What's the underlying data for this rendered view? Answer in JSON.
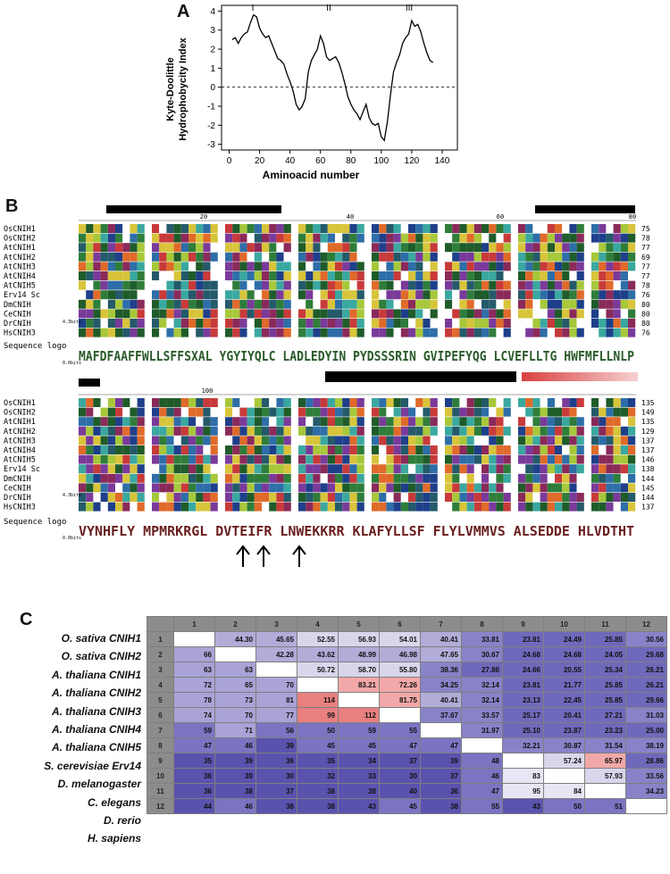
{
  "panel_a": {
    "letter": "A",
    "ylabel_line1": "Kyte-Doolittle",
    "ylabel_line2": "Hydrophobycity Index",
    "xlabel": "Aminoacid number",
    "region_labels": [
      "I",
      "II",
      "III"
    ],
    "chart_data": {
      "type": "line",
      "xlabel": "Aminoacid number",
      "ylabel": "Kyte-Doolittle Hydrophobycity Index",
      "xlim": [
        -5,
        150
      ],
      "ylim": [
        -3.3,
        4.3
      ],
      "xticks": [
        "0",
        "20",
        "40",
        "60",
        "80",
        "100",
        "120",
        "140"
      ],
      "yticks": [
        "-3",
        "-2",
        "-1",
        "0",
        "1",
        "2",
        "3",
        "4"
      ],
      "reference_line_y": 0,
      "x": [
        2,
        4,
        6,
        8,
        10,
        12,
        14,
        16,
        18,
        20,
        22,
        24,
        26,
        28,
        30,
        32,
        34,
        36,
        38,
        40,
        42,
        44,
        46,
        48,
        50,
        52,
        54,
        56,
        58,
        60,
        62,
        64,
        66,
        68,
        70,
        72,
        74,
        76,
        78,
        80,
        82,
        84,
        86,
        88,
        90,
        92,
        94,
        96,
        98,
        100,
        102,
        104,
        106,
        108,
        110,
        112,
        114,
        116,
        118,
        120,
        122,
        124,
        126,
        128,
        130,
        132,
        134
      ],
      "y": [
        2.5,
        2.6,
        2.3,
        2.6,
        2.8,
        2.9,
        3.4,
        3.8,
        3.7,
        3.1,
        2.8,
        2.6,
        2.7,
        2.3,
        1.9,
        1.5,
        1.4,
        1.2,
        0.7,
        0.3,
        -0.2,
        -0.9,
        -1.2,
        -1.0,
        -0.6,
        0.8,
        1.4,
        1.7,
        2.0,
        2.7,
        2.3,
        1.6,
        1.4,
        1.5,
        1.6,
        1.3,
        0.8,
        0.2,
        -0.5,
        -0.9,
        -1.2,
        -1.4,
        -1.7,
        -1.3,
        -0.9,
        -1.6,
        -1.9,
        -2.0,
        -1.9,
        -2.6,
        -2.8,
        -1.8,
        -0.4,
        0.8,
        1.3,
        1.7,
        2.3,
        2.6,
        2.8,
        3.5,
        3.2,
        3.3,
        2.9,
        2.3,
        1.8,
        1.4,
        1.3
      ]
    }
  },
  "panel_b": {
    "letter": "B",
    "block1": {
      "ruler_ticks": [
        "20",
        "40",
        "60",
        "80"
      ],
      "sequences": [
        {
          "name": "OsCNIH1",
          "end": "75"
        },
        {
          "name": "OsCNIH2",
          "end": "78"
        },
        {
          "name": "AtCNIH1",
          "end": "77"
        },
        {
          "name": "AtCNIH2",
          "end": "69"
        },
        {
          "name": "AtCNIH3",
          "end": "77"
        },
        {
          "name": "AtCNIH4",
          "end": "77"
        },
        {
          "name": "AtCNIH5",
          "end": "78"
        },
        {
          "name": "Erv14 Sc",
          "end": "76"
        },
        {
          "name": "DmCNIH",
          "end": "80"
        },
        {
          "name": "CeCNIH",
          "end": "80"
        },
        {
          "name": "DrCNIH",
          "end": "80"
        },
        {
          "name": "HsCNIH3",
          "end": "76"
        }
      ],
      "logo_label": "Sequence logo",
      "bits_top": "4.3bits",
      "bits_bottom": "0.0bits",
      "logo_text": "MAFDFAAFFWLLSFFSXAL YGYIYQLC LADLEDYIN PYDSSSRIN GVIPEFYQG LCVEFLLTG HWFMFLLNLP"
    },
    "block2": {
      "ruler_ticks": [
        "100"
      ],
      "sequences": [
        {
          "name": "OsCNIH1",
          "end": "135"
        },
        {
          "name": "OsCNIH2",
          "end": "149"
        },
        {
          "name": "AtCNIH1",
          "end": "135"
        },
        {
          "name": "AtCNIH2",
          "end": "129"
        },
        {
          "name": "AtCNIH3",
          "end": "137"
        },
        {
          "name": "AtCNIH4",
          "end": "137"
        },
        {
          "name": "AtCNIH5",
          "end": "146"
        },
        {
          "name": "Erv14 Sc",
          "end": "138"
        },
        {
          "name": "DmCNIH",
          "end": "144"
        },
        {
          "name": "CeCNIH",
          "end": "145"
        },
        {
          "name": "DrCNIH",
          "end": "144"
        },
        {
          "name": "HsCNIH3",
          "end": "137"
        }
      ],
      "logo_label": "Sequence logo",
      "bits_top": "4.3bits",
      "bits_bottom": "0.0bits",
      "logo_text": "VYNHFLY MPMRKRGL DVTEIFR LNWEKKRR KLAFYLLSF FLYLVMMVS ALSEDDE HLVDTHT"
    }
  },
  "panel_c": {
    "letter": "C",
    "col_headers": [
      "1",
      "2",
      "3",
      "4",
      "5",
      "6",
      "7",
      "8",
      "9",
      "10",
      "11",
      "12"
    ],
    "species": [
      "O. sativa CNIH1",
      "O. sativa CNIH2",
      "A. thaliana CNIH1",
      "A. thaliana CNIH2",
      "A. thaliana CNIH3",
      "A. thaliana CNIH4",
      "A. thaliana CNIH5",
      "S. cerevisiae Erv14",
      "D. melanogaster",
      "C. elegans",
      "D. rerio",
      "H. sapiens"
    ],
    "rows": [
      [
        "",
        "44.30",
        "45.65",
        "52.55",
        "56.93",
        "54.01",
        "40.41",
        "33.81",
        "23.81",
        "24.49",
        "25.85",
        "30.56"
      ],
      [
        "66",
        "",
        "42.28",
        "43.62",
        "48.99",
        "46.98",
        "47.65",
        "30.67",
        "24.68",
        "24.68",
        "24.05",
        "29.68"
      ],
      [
        "63",
        "63",
        "",
        "50.72",
        "58.70",
        "55.80",
        "38.36",
        "27.86",
        "24.66",
        "20.55",
        "25.34",
        "26.21"
      ],
      [
        "72",
        "65",
        "70",
        "",
        "83.21",
        "72.26",
        "34.25",
        "32.14",
        "23.81",
        "21.77",
        "25.85",
        "26.21"
      ],
      [
        "78",
        "73",
        "81",
        "114",
        "",
        "81.75",
        "40.41",
        "32.14",
        "23.13",
        "22.45",
        "25.85",
        "29.66"
      ],
      [
        "74",
        "70",
        "77",
        "99",
        "112",
        "",
        "37.67",
        "33.57",
        "25.17",
        "20.41",
        "27.21",
        "31.03"
      ],
      [
        "59",
        "71",
        "56",
        "50",
        "59",
        "55",
        "",
        "31.97",
        "25.10",
        "23.87",
        "23.23",
        "25.00"
      ],
      [
        "47",
        "46",
        "39",
        "45",
        "45",
        "47",
        "47",
        "",
        "32.21",
        "30.87",
        "31.54",
        "38.19"
      ],
      [
        "35",
        "39",
        "36",
        "35",
        "34",
        "37",
        "39",
        "48",
        "",
        "57.24",
        "65.97",
        "28.86"
      ],
      [
        "36",
        "39",
        "30",
        "32",
        "33",
        "30",
        "37",
        "46",
        "83",
        "",
        "57.93",
        "33.56"
      ],
      [
        "36",
        "38",
        "37",
        "38",
        "38",
        "40",
        "36",
        "47",
        "95",
        "84",
        "",
        "34.23"
      ],
      [
        "44",
        "46",
        "38",
        "38",
        "43",
        "45",
        "38",
        "55",
        "43",
        "50",
        "51",
        ""
      ]
    ]
  }
}
